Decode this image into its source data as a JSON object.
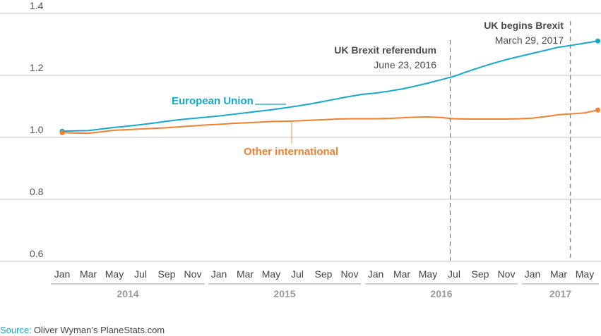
{
  "chart_data": {
    "type": "line",
    "title": "",
    "xlabel": "",
    "ylabel": "",
    "ylim": [
      0.6,
      1.4
    ],
    "yticks": [
      "0.6",
      "0.8",
      "1.0",
      "1.2",
      "1.4"
    ],
    "ytick_values": [
      0.6,
      0.8,
      1.0,
      1.2,
      1.4
    ],
    "grid": true,
    "x_month_labels": [
      "Jan",
      "Mar",
      "May",
      "Jul",
      "Sep",
      "Nov",
      "Jan",
      "Mar",
      "May",
      "Jul",
      "Sep",
      "Nov",
      "Jan",
      "Mar",
      "May",
      "Jul",
      "Sep",
      "Nov",
      "Jan",
      "Mar",
      "May"
    ],
    "years": [
      "2014",
      "2015",
      "2016",
      "2017"
    ],
    "x_start": "Jan 2014",
    "x_end": "Jun 2017",
    "series": [
      {
        "name": "European Union",
        "color": "#13a8cf",
        "values": [
          1.02,
          1.021,
          1.022,
          1.027,
          1.032,
          1.036,
          1.041,
          1.046,
          1.052,
          1.057,
          1.061,
          1.065,
          1.069,
          1.074,
          1.079,
          1.084,
          1.089,
          1.095,
          1.101,
          1.108,
          1.116,
          1.124,
          1.132,
          1.139,
          1.143,
          1.149,
          1.156,
          1.165,
          1.175,
          1.186,
          1.197,
          1.212,
          1.226,
          1.239,
          1.251,
          1.261,
          1.271,
          1.281,
          1.291,
          1.297,
          1.304,
          1.311
        ]
      },
      {
        "name": "Other international",
        "color": "#f0802f",
        "values": [
          1.015,
          1.014,
          1.013,
          1.018,
          1.023,
          1.025,
          1.027,
          1.029,
          1.031,
          1.034,
          1.037,
          1.04,
          1.042,
          1.045,
          1.047,
          1.049,
          1.051,
          1.052,
          1.053,
          1.055,
          1.057,
          1.059,
          1.06,
          1.06,
          1.06,
          1.061,
          1.063,
          1.065,
          1.066,
          1.064,
          1.06,
          1.059,
          1.059,
          1.059,
          1.059,
          1.06,
          1.062,
          1.067,
          1.073,
          1.076,
          1.079,
          1.088
        ]
      }
    ],
    "annotations": [
      {
        "title": "UK Brexit referendum",
        "date": "June 23, 2016",
        "month_index": 29.7
      },
      {
        "title": "UK begins Brexit",
        "date": "March 29, 2017",
        "month_index": 38.9
      }
    ]
  },
  "source": {
    "label": "Source:",
    "text": "Oliver Wyman’s PlaneStats.com",
    "color": "#13a8cf"
  }
}
